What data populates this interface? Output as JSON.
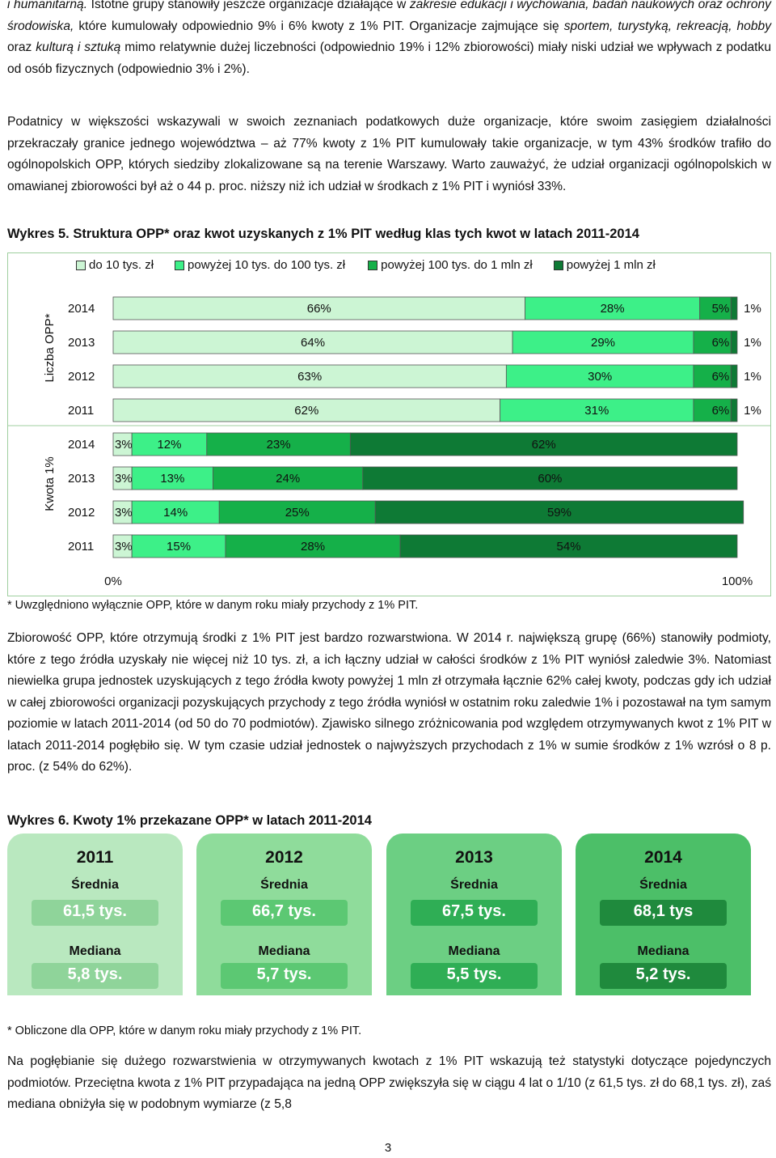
{
  "paragraphs": {
    "p1_line1_italic_start": "i humanitarną.",
    "p1_line1_rest": " Istotne grupy stanowiły jeszcze organizacje działające w ",
    "p1_line1_italic2": "zakresie edukacji i wychowania, badań naukowych oraz ochrony środowiska,",
    "p1_line1_rest2": " które kumulowały odpowiednio 9% i 6% kwoty z 1% PIT. Organizacje zajmujące się ",
    "p1_italic3": "sportem, turystyką, rekreacją, hobby",
    "p1_rest3": " oraz ",
    "p1_italic4": "kulturą i sztuką",
    "p1_rest4": " mimo relatywnie dużej liczebności (odpowiednio 19% i 12% zbiorowości) miały niski udział we wpływach z podatku od osób fizycznych (odpowiednio 3% i 2%).",
    "p2": "Podatnicy w większości wskazywali w swoich zeznaniach podatkowych duże organizacje, które swoim zasięgiem działalności przekraczały granice jednego województwa – aż 77% kwoty z 1% PIT kumulowały takie organizacje, w tym 43% środków trafiło do ogólnopolskich OPP, których siedziby zlokalizowane są na terenie Warszawy. Warto zauważyć, że udział organizacji ogólnopolskich w omawianej zbiorowości był aż o 44 p. proc. niższy niż ich udział w środkach z 1% PIT i wyniósł 33%.",
    "p3": "Zbiorowość OPP, które otrzymują środki z 1% PIT jest bardzo rozwarstwiona. W 2014 r. największą grupę (66%) stanowiły podmioty, które z tego źródła uzyskały nie więcej niż 10 tys. zł, a ich łączny udział w całości środków z 1% PIT wyniósł zaledwie 3%. Natomiast  niewielka grupa jednostek uzyskujących z tego źródła kwoty powyżej 1 mln zł otrzymała łącznie 62% całej kwoty, podczas gdy ich udział  w całej zbiorowości organizacji pozyskujących  przychody z tego źródła wyniósł w ostatnim roku zaledwie 1% i pozostawał na tym samym poziomie  w latach 2011-2014 (od 50 do 70 podmiotów). Zjawisko silnego zróżnicowania pod względem otrzymywanych kwot z 1% PIT w latach 2011-2014 pogłębiło się. W tym czasie udział jednostek o najwyższych przychodach z 1% w sumie środków z 1% wzrósł o 8 p. proc. (z 54% do 62%).",
    "p4": "Na pogłębianie się dużego rozwarstwienia w otrzymywanych kwotach z 1% PIT wskazują też statystyki dotyczące pojedynczych podmiotów. Przeciętna kwota z 1% PIT przypadająca na jedną OPP zwiększyła się w ciągu 4 lat o 1/10 (z 61,5 tys. zł do 68,1 tys. zł), zaś mediana obniżyła się w podobnym wymiarze (z 5,8"
  },
  "figure5": {
    "heading": "Wykres 5. Struktura OPP* oraz kwot uzyskanych z 1% PIT według klas tych kwot w latach 2011-2014",
    "footnote": "* Uwzględniono wyłącznie OPP, które w danym roku miały przychody z 1% PIT."
  },
  "figure6": {
    "heading": "Wykres 6. Kwoty 1% przekazane OPP* w latach 2011-2014",
    "footnote": "* Obliczone dla OPP, które w danym roku miały przychody z 1% PIT.",
    "avg_label": "Średnia",
    "median_label": "Mediana",
    "cards": [
      {
        "year": "2011",
        "avg": "61,5 tys.",
        "median": "5,8 tys.",
        "color": "#b9e8bf",
        "value_color": "#8fd49a"
      },
      {
        "year": "2012",
        "avg": "66,7 tys.",
        "median": "5,7 tys.",
        "color": "#8fdc9b",
        "value_color": "#5cc873"
      },
      {
        "year": "2013",
        "avg": "67,5 tys.",
        "median": "5,5 tys.",
        "color": "#6ccf83",
        "value_color": "#2fae55"
      },
      {
        "year": "2014",
        "avg": "68,1 tys",
        "median": "5,2 tys.",
        "color": "#4cbf68",
        "value_color": "#1f8a3d"
      }
    ]
  },
  "chart_data": {
    "type": "bar",
    "orientation": "horizontal-stacked-100",
    "legend": {
      "entries": [
        "do 10 tys. zł",
        "powyżej 10 tys. do 100 tys. zł",
        "powyżej 100 tys. do 1 mln zł",
        "powyżej 1 mln zł"
      ],
      "colors": [
        "#ccf5d4",
        "#3df088",
        "#15b049",
        "#0e7a35"
      ],
      "placement": "top"
    },
    "groups": [
      {
        "name": "Liczba OPP*",
        "rows": [
          {
            "label": "2014",
            "values": [
              66,
              28,
              5,
              1
            ]
          },
          {
            "label": "2013",
            "values": [
              64,
              29,
              6,
              1
            ]
          },
          {
            "label": "2012",
            "values": [
              63,
              30,
              6,
              1
            ]
          },
          {
            "label": "2011",
            "values": [
              62,
              31,
              6,
              1
            ]
          }
        ]
      },
      {
        "name": "Kwota 1%",
        "rows": [
          {
            "label": "2014",
            "values": [
              3,
              12,
              23,
              62
            ]
          },
          {
            "label": "2013",
            "values": [
              3,
              13,
              24,
              60
            ]
          },
          {
            "label": "2012",
            "values": [
              3,
              14,
              25,
              59
            ]
          },
          {
            "label": "2011",
            "values": [
              3,
              15,
              28,
              54
            ]
          }
        ]
      }
    ],
    "x_ticks": [
      "0%",
      "100%"
    ],
    "xlim": [
      0,
      100
    ],
    "value_suffix": "%"
  },
  "page_number": "3"
}
